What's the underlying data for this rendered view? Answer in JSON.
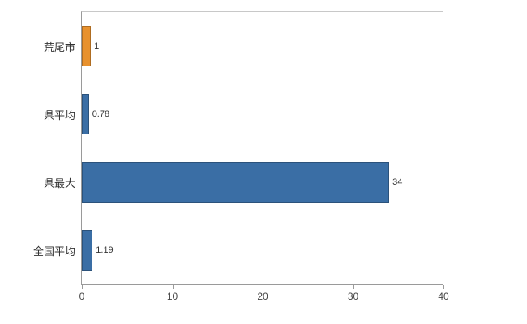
{
  "chart_data": {
    "type": "bar",
    "orientation": "horizontal",
    "title": "",
    "xlabel": "",
    "ylabel": "",
    "categories": [
      "荒尾市",
      "県平均",
      "県最大",
      "全国平均"
    ],
    "values": [
      1,
      0.78,
      34,
      1.19
    ],
    "value_labels": [
      "1",
      "0.78",
      "34",
      "1.19"
    ],
    "colors": [
      "#e8912d",
      "#3a6ea5",
      "#3a6ea5",
      "#3a6ea5"
    ],
    "xlim": [
      0,
      40
    ],
    "x_ticks": [
      0,
      10,
      20,
      30,
      40
    ],
    "grid": false,
    "legend": "none",
    "background": "#ffffff",
    "axis_color": "#9a9a9a"
  }
}
